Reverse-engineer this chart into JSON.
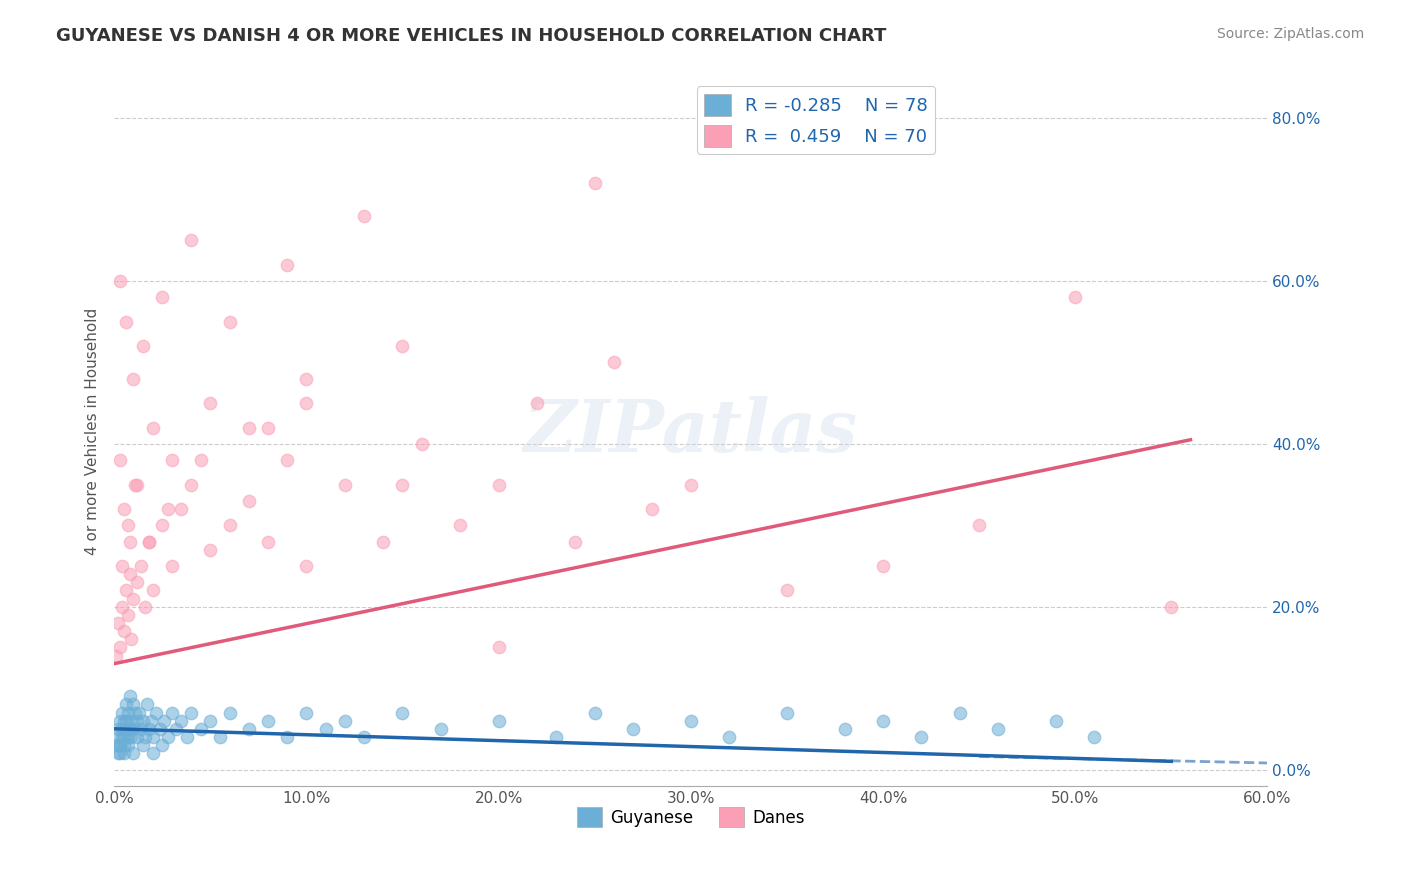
{
  "title": "GUYANESE VS DANISH 4 OR MORE VEHICLES IN HOUSEHOLD CORRELATION CHART",
  "source_text": "Source: ZipAtlas.com",
  "xlabel": "Guyanese",
  "ylabel": "4 or more Vehicles in Household",
  "xlim": [
    0.0,
    0.6
  ],
  "ylim": [
    -0.02,
    0.85
  ],
  "xtick_labels": [
    "0.0%",
    "10.0%",
    "20.0%",
    "30.0%",
    "40.0%",
    "50.0%",
    "60.0%"
  ],
  "xtick_vals": [
    0.0,
    0.1,
    0.2,
    0.3,
    0.4,
    0.5,
    0.6
  ],
  "ytick_labels": [
    "0.0%",
    "20.0%",
    "40.0%",
    "60.0%",
    "80.0%"
  ],
  "ytick_vals": [
    0.0,
    0.2,
    0.4,
    0.6,
    0.8
  ],
  "r_blue": -0.285,
  "n_blue": 78,
  "r_pink": 0.459,
  "n_pink": 70,
  "blue_color": "#6baed6",
  "pink_color": "#fa9fb5",
  "blue_line_color": "#2166ac",
  "pink_line_color": "#e05a7a",
  "watermark": "ZIPatlas",
  "legend_blue_label_r": "R = -0.285",
  "legend_pink_label_r": "R =  0.459",
  "legend_blue_label_n": "N = 78",
  "legend_pink_label_n": "N = 70",
  "blue_scatter_x": [
    0.001,
    0.002,
    0.002,
    0.003,
    0.003,
    0.003,
    0.004,
    0.004,
    0.004,
    0.005,
    0.005,
    0.005,
    0.006,
    0.006,
    0.006,
    0.007,
    0.007,
    0.008,
    0.008,
    0.009,
    0.009,
    0.01,
    0.01,
    0.011,
    0.012,
    0.012,
    0.013,
    0.014,
    0.015,
    0.016,
    0.017,
    0.018,
    0.019,
    0.02,
    0.022,
    0.024,
    0.026,
    0.028,
    0.03,
    0.032,
    0.035,
    0.038,
    0.04,
    0.045,
    0.05,
    0.055,
    0.06,
    0.07,
    0.08,
    0.09,
    0.1,
    0.11,
    0.12,
    0.13,
    0.15,
    0.17,
    0.2,
    0.23,
    0.25,
    0.27,
    0.3,
    0.32,
    0.35,
    0.38,
    0.4,
    0.42,
    0.44,
    0.46,
    0.49,
    0.51,
    0.002,
    0.003,
    0.005,
    0.007,
    0.01,
    0.015,
    0.02,
    0.025
  ],
  "blue_scatter_y": [
    0.03,
    0.05,
    0.04,
    0.06,
    0.02,
    0.03,
    0.07,
    0.04,
    0.05,
    0.06,
    0.03,
    0.04,
    0.08,
    0.05,
    0.06,
    0.07,
    0.04,
    0.09,
    0.05,
    0.06,
    0.04,
    0.08,
    0.05,
    0.07,
    0.06,
    0.04,
    0.07,
    0.05,
    0.06,
    0.04,
    0.08,
    0.05,
    0.06,
    0.04,
    0.07,
    0.05,
    0.06,
    0.04,
    0.07,
    0.05,
    0.06,
    0.04,
    0.07,
    0.05,
    0.06,
    0.04,
    0.07,
    0.05,
    0.06,
    0.04,
    0.07,
    0.05,
    0.06,
    0.04,
    0.07,
    0.05,
    0.06,
    0.04,
    0.07,
    0.05,
    0.06,
    0.04,
    0.07,
    0.05,
    0.06,
    0.04,
    0.07,
    0.05,
    0.06,
    0.04,
    0.02,
    0.03,
    0.02,
    0.03,
    0.02,
    0.03,
    0.02,
    0.03
  ],
  "pink_scatter_x": [
    0.001,
    0.002,
    0.003,
    0.004,
    0.005,
    0.006,
    0.007,
    0.008,
    0.009,
    0.01,
    0.012,
    0.014,
    0.016,
    0.018,
    0.02,
    0.025,
    0.03,
    0.035,
    0.04,
    0.05,
    0.06,
    0.07,
    0.08,
    0.09,
    0.1,
    0.12,
    0.14,
    0.16,
    0.18,
    0.2,
    0.22,
    0.24,
    0.26,
    0.28,
    0.3,
    0.35,
    0.4,
    0.45,
    0.5,
    0.55,
    0.003,
    0.005,
    0.008,
    0.012,
    0.02,
    0.03,
    0.05,
    0.08,
    0.1,
    0.15,
    0.003,
    0.006,
    0.01,
    0.015,
    0.025,
    0.04,
    0.06,
    0.09,
    0.13,
    0.2,
    0.004,
    0.007,
    0.011,
    0.018,
    0.028,
    0.045,
    0.07,
    0.1,
    0.15,
    0.25
  ],
  "pink_scatter_y": [
    0.14,
    0.18,
    0.15,
    0.2,
    0.17,
    0.22,
    0.19,
    0.24,
    0.16,
    0.21,
    0.23,
    0.25,
    0.2,
    0.28,
    0.22,
    0.3,
    0.25,
    0.32,
    0.35,
    0.27,
    0.3,
    0.33,
    0.28,
    0.38,
    0.25,
    0.35,
    0.28,
    0.4,
    0.3,
    0.35,
    0.45,
    0.28,
    0.5,
    0.32,
    0.35,
    0.22,
    0.25,
    0.3,
    0.58,
    0.2,
    0.38,
    0.32,
    0.28,
    0.35,
    0.42,
    0.38,
    0.45,
    0.42,
    0.48,
    0.52,
    0.6,
    0.55,
    0.48,
    0.52,
    0.58,
    0.65,
    0.55,
    0.62,
    0.68,
    0.15,
    0.25,
    0.3,
    0.35,
    0.28,
    0.32,
    0.38,
    0.42,
    0.45,
    0.35,
    0.72
  ]
}
